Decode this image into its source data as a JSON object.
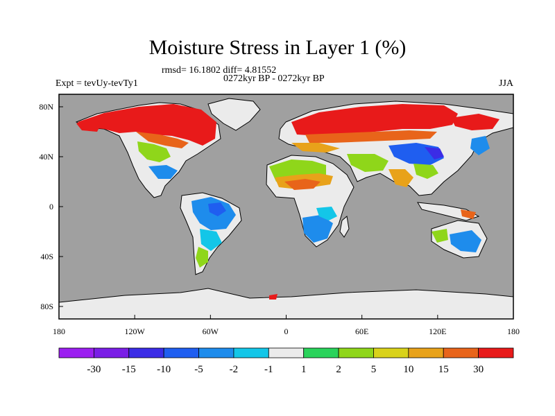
{
  "title": "Moisture Stress in Layer 1 (%)",
  "subtitle": "rmsd= 16.1802  diff= 4.81552",
  "time_range": "0272kyr BP - 0272kyr BP",
  "left_label": "Expt = tevUy-tevTy1",
  "right_label": "JJA",
  "colors": {
    "ocean": "#a0a0a0",
    "neutral_land": "#ebebeb",
    "coast": "#000000"
  },
  "chart_data": {
    "type": "heatmap",
    "projection": "cylindrical-equidistant",
    "lon_range": [
      -180,
      180
    ],
    "lat_range": [
      -90,
      90
    ],
    "x_ticks": [
      {
        "lon": -180,
        "label": "180"
      },
      {
        "lon": -120,
        "label": "120W"
      },
      {
        "lon": -60,
        "label": "60W"
      },
      {
        "lon": 0,
        "label": "0"
      },
      {
        "lon": 60,
        "label": "60E"
      },
      {
        "lon": 120,
        "label": "120E"
      },
      {
        "lon": 180,
        "label": "180"
      }
    ],
    "y_ticks": [
      {
        "lat": 80,
        "label": "80N"
      },
      {
        "lat": 40,
        "label": "40N"
      },
      {
        "lat": 0,
        "label": "0"
      },
      {
        "lat": -40,
        "label": "40S"
      },
      {
        "lat": -80,
        "label": "80S"
      }
    ],
    "colorbar": {
      "colors": [
        "#9b1ff0",
        "#7a1ee6",
        "#3b2ce6",
        "#1f5ef0",
        "#1e8cec",
        "#13c6e8",
        "#ebebeb",
        "#2ad35b",
        "#8fd61a",
        "#d9d21a",
        "#e8a21a",
        "#e8641a",
        "#e81a1a"
      ],
      "labels": [
        "-30",
        "-15",
        "-10",
        "-5",
        "-2",
        "-1",
        "1",
        "2",
        "5",
        "10",
        "15",
        "30"
      ]
    }
  }
}
